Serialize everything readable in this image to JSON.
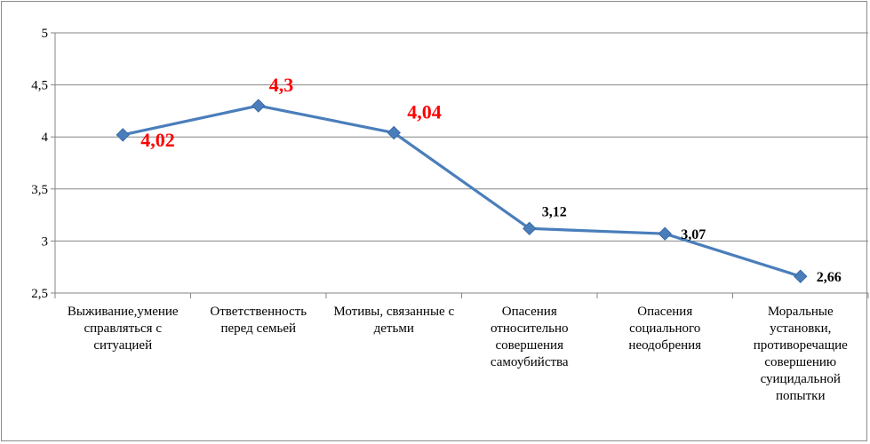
{
  "chart_data": {
    "type": "line",
    "title": "",
    "xlabel": "",
    "ylabel": "",
    "ylim": [
      2.5,
      5
    ],
    "yticks": [
      "2,5",
      "3",
      "3,5",
      "4",
      "4,5",
      "5"
    ],
    "grid": true,
    "legend": "none",
    "categories": [
      [
        "Выживание,умение",
        "справляться с",
        "ситуацией"
      ],
      [
        "Ответственность",
        "перед семьей"
      ],
      [
        "Мотивы, связанные с",
        "детьми"
      ],
      [
        "Опасения",
        "относительно",
        "совершения",
        "самоубийства"
      ],
      [
        "Опасения",
        "социального",
        "неодобрения"
      ],
      [
        "Моральные",
        "установки,",
        "противоречащие",
        "совершению",
        "суицидальной",
        "попытки"
      ]
    ],
    "series": [
      {
        "values": [
          4.02,
          4.3,
          4.04,
          3.12,
          3.07,
          2.66
        ],
        "color": "#4a7ebb",
        "data_labels": [
          "4,02",
          "4,3",
          "4,04",
          "3,12",
          "3,07",
          "2,66"
        ],
        "label_colors": [
          "#ff0000",
          "#ff0000",
          "#ff0000",
          "#000000",
          "#000000",
          "#000000"
        ]
      }
    ]
  }
}
